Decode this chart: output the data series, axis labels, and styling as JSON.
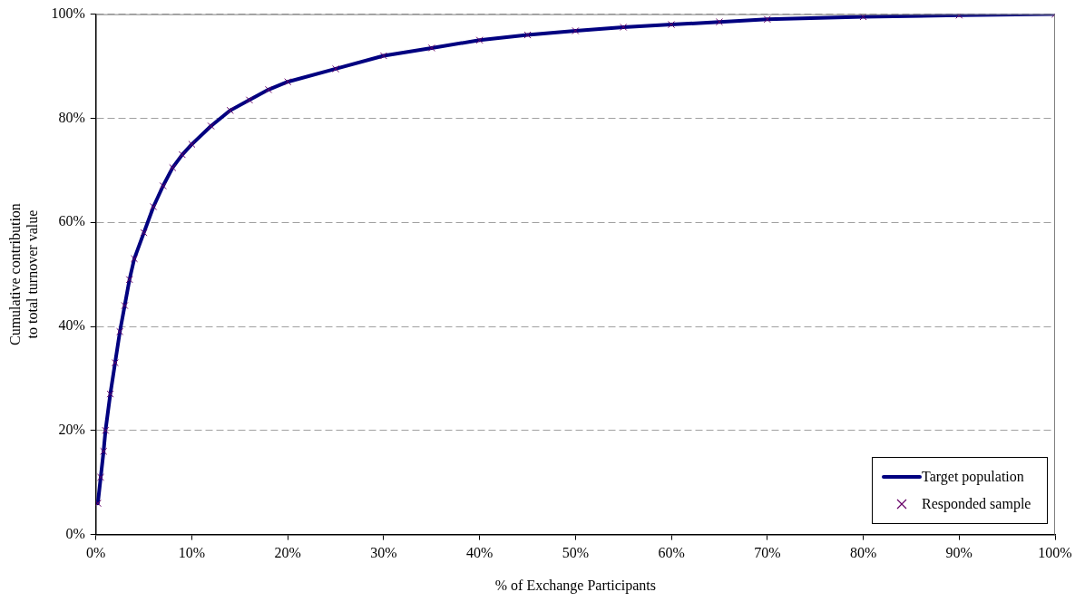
{
  "chart_data": {
    "type": "line",
    "xlabel": "% of Exchange Participants",
    "ylabel": "Cumulative contribution to total turnover value",
    "x": [
      0.2,
      0.5,
      0.8,
      1,
      1.5,
      2,
      2.5,
      3,
      3.5,
      4,
      5,
      6,
      7,
      8,
      9,
      10,
      12,
      14,
      16,
      18,
      20,
      25,
      30,
      35,
      40,
      45,
      50,
      55,
      60,
      65,
      70,
      80,
      90,
      100
    ],
    "series": [
      {
        "name": "Target population",
        "color": "#000080",
        "marker": "none",
        "line_style": "solid",
        "values": [
          6,
          11,
          16,
          20,
          27,
          33,
          39,
          44,
          49,
          53,
          58,
          63,
          67,
          70.5,
          73,
          75,
          78.5,
          81.5,
          83.5,
          85.5,
          87,
          89.5,
          92,
          93.5,
          95,
          96,
          96.8,
          97.5,
          98,
          98.5,
          99,
          99.5,
          99.8,
          100
        ]
      },
      {
        "name": "Responded sample",
        "color": "#660066",
        "type": "scatter",
        "marker": "cross",
        "values": [
          6,
          11,
          16,
          20,
          27,
          33,
          39,
          44,
          49,
          53,
          58,
          63,
          67,
          70.5,
          73,
          75,
          78.5,
          81.5,
          83.5,
          85.5,
          87,
          89.5,
          92,
          93.5,
          95,
          96,
          96.8,
          97.5,
          98,
          98.5,
          99,
          99.5,
          99.8,
          100
        ]
      }
    ],
    "xlim": [
      0,
      100
    ],
    "xticks": [
      {
        "value": 0,
        "label": "0%"
      },
      {
        "value": 10,
        "label": "10%"
      },
      {
        "value": 20,
        "label": "20%"
      },
      {
        "value": 30,
        "label": "30%"
      },
      {
        "value": 40,
        "label": "40%"
      },
      {
        "value": 50,
        "label": "50%"
      },
      {
        "value": 60,
        "label": "60%"
      },
      {
        "value": 70,
        "label": "70%"
      },
      {
        "value": 80,
        "label": "80%"
      },
      {
        "value": 90,
        "label": "90%"
      },
      {
        "value": 100,
        "label": "100%"
      }
    ],
    "ylim": [
      0,
      100
    ],
    "yticks": [
      {
        "value": 0,
        "label": "0%"
      },
      {
        "value": 20,
        "label": "20%"
      },
      {
        "value": 40,
        "label": "40%"
      },
      {
        "value": 60,
        "label": "60%"
      },
      {
        "value": 80,
        "label": "80%"
      },
      {
        "value": 100,
        "label": "100%"
      }
    ],
    "grid": "y",
    "legend": "bottom right"
  }
}
